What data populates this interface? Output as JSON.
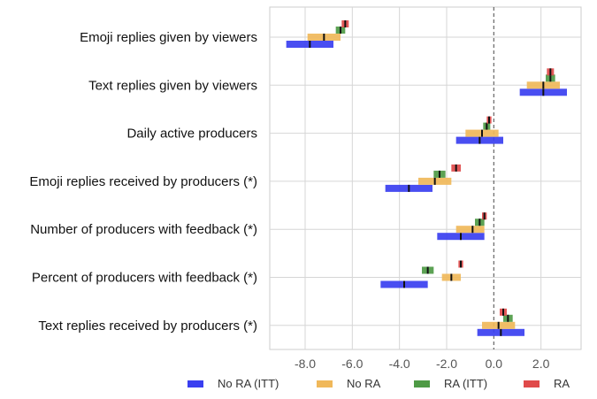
{
  "chart_data": {
    "type": "forest",
    "title": "",
    "xlabel": "",
    "ylabel": "",
    "xlim": [
      -9.5,
      3.7
    ],
    "xticks": [
      -8.0,
      -6.0,
      -4.0,
      -2.0,
      0.0,
      2.0
    ],
    "xtick_labels": [
      "-8.0",
      "-6.0",
      "-4.0",
      "-2.0",
      "0.0",
      "2.0"
    ],
    "reference_line": 0,
    "grid": true,
    "legend_position": "bottom",
    "categories": [
      "Emoji replies given by viewers",
      "Text replies given by viewers",
      "Daily active producers",
      "Emoji replies received by producers (*)",
      "Number of producers with feedback (*)",
      "Percent of producers with feedback (*)",
      "Text replies received by producers (*)"
    ],
    "series": [
      {
        "name": "No RA (ITT)",
        "color": "#3a3ff0",
        "estimate": [
          -7.8,
          2.1,
          -0.6,
          -3.6,
          -1.4,
          -3.8,
          0.3
        ],
        "ci_low": [
          -8.8,
          1.1,
          -1.6,
          -4.6,
          -2.4,
          -4.8,
          -0.7
        ],
        "ci_high": [
          -6.8,
          3.1,
          0.4,
          -2.6,
          -0.4,
          -2.8,
          1.3
        ]
      },
      {
        "name": "No RA",
        "color": "#f0b85a",
        "estimate": [
          -7.2,
          2.1,
          -0.5,
          -2.5,
          -0.9,
          -1.8,
          0.2
        ],
        "ci_low": [
          -7.9,
          1.4,
          -1.2,
          -3.2,
          -1.6,
          -2.2,
          -0.5
        ],
        "ci_high": [
          -6.5,
          2.8,
          0.2,
          -1.8,
          -0.4,
          -1.4,
          0.9
        ]
      },
      {
        "name": "RA (ITT)",
        "color": "#4e9a45",
        "estimate": [
          -6.5,
          2.4,
          -0.3,
          -2.3,
          -0.6,
          -2.8,
          0.6
        ],
        "ci_low": [
          -6.7,
          2.2,
          -0.45,
          -2.55,
          -0.8,
          -3.05,
          0.4
        ],
        "ci_high": [
          -6.3,
          2.6,
          -0.15,
          -2.05,
          -0.4,
          -2.55,
          0.8
        ]
      },
      {
        "name": "RA",
        "color": "#e04a4a",
        "estimate": [
          -6.3,
          2.4,
          -0.2,
          -1.6,
          -0.4,
          -1.4,
          0.4
        ],
        "ci_low": [
          -6.45,
          2.25,
          -0.3,
          -1.8,
          -0.5,
          -1.5,
          0.25
        ],
        "ci_high": [
          -6.15,
          2.55,
          -0.1,
          -1.4,
          -0.3,
          -1.3,
          0.55
        ]
      }
    ]
  }
}
